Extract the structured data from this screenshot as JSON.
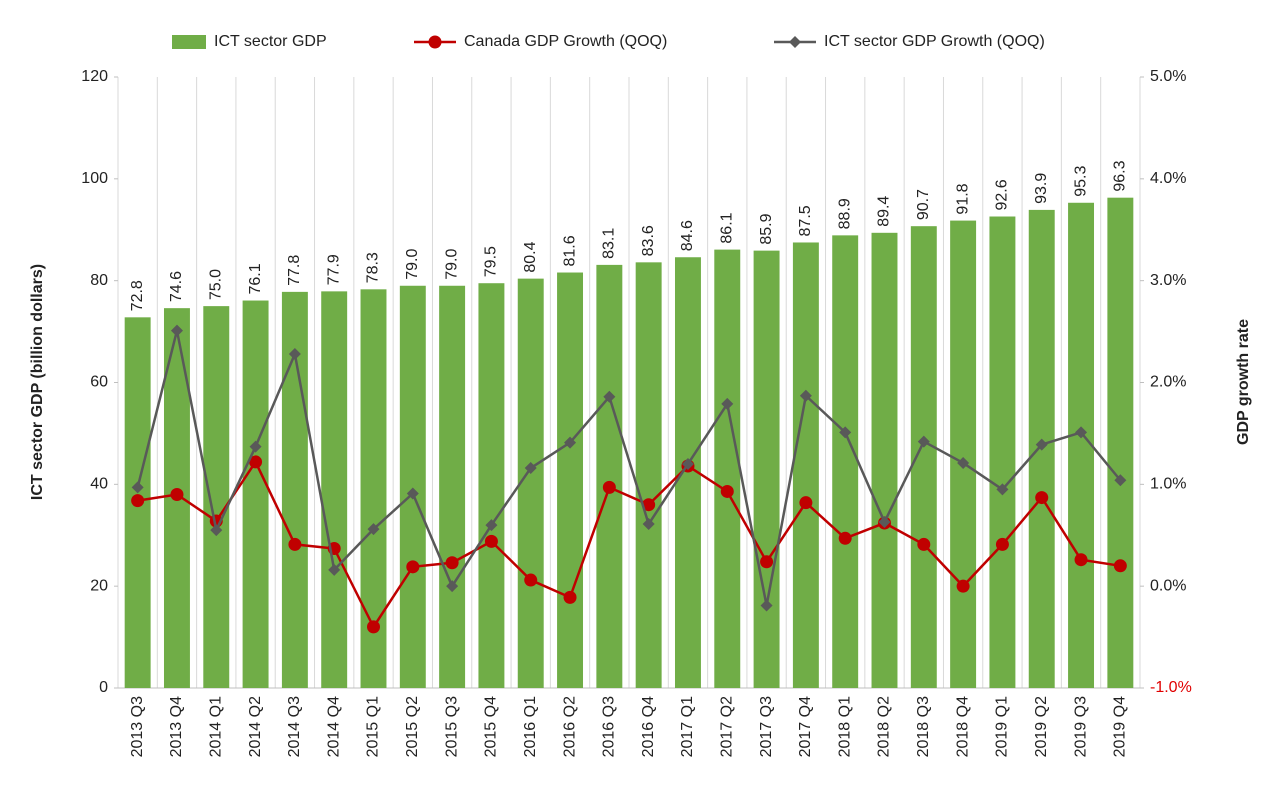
{
  "chart_data": {
    "type": "bar",
    "ylabel": "ICT sector GDP (billion dollars)",
    "y2label": "GDP growth rate",
    "categories": [
      "2013 Q3",
      "2013 Q4",
      "2014 Q1",
      "2014 Q2",
      "2014 Q3",
      "2014 Q4",
      "2015 Q1",
      "2015 Q2",
      "2015 Q3",
      "2015 Q4",
      "2016 Q1",
      "2016 Q2",
      "2016 Q3",
      "2016 Q4",
      "2017 Q1",
      "2017 Q2",
      "2017 Q3",
      "2017 Q4",
      "2018 Q1",
      "2018 Q2",
      "2018 Q3",
      "2018 Q4",
      "2019 Q1",
      "2019 Q2",
      "2019 Q3",
      "2019 Q4"
    ],
    "series": [
      {
        "name": "ICT sector GDP",
        "type": "bar",
        "color": "#70ad47",
        "values": [
          72.8,
          74.6,
          75.0,
          76.1,
          77.8,
          77.9,
          78.3,
          79.0,
          79.0,
          79.5,
          80.4,
          81.6,
          83.1,
          83.6,
          84.6,
          86.1,
          85.9,
          87.5,
          88.9,
          89.4,
          90.7,
          91.8,
          92.6,
          93.9,
          95.3,
          96.3
        ],
        "value_labels": [
          "72.8",
          "74.6",
          "75.0",
          "76.1",
          "77.8",
          "77.9",
          "78.3",
          "79.0",
          "79.0",
          "79.5",
          "80.4",
          "81.6",
          "83.1",
          "83.6",
          "84.6",
          "86.1",
          "85.9",
          "87.5",
          "88.9",
          "89.4",
          "90.7",
          "91.8",
          "92.6",
          "93.9",
          "95.3",
          "96.3"
        ]
      },
      {
        "name": "Canada GDP Growth (QOQ)",
        "type": "line",
        "axis": "y2",
        "marker": "circle",
        "color": "#c00000",
        "values": [
          0.84,
          0.9,
          0.64,
          1.22,
          0.41,
          0.37,
          -0.4,
          0.19,
          0.23,
          0.44,
          0.06,
          -0.11,
          0.97,
          0.8,
          1.18,
          0.93,
          0.24,
          0.82,
          0.47,
          0.62,
          0.41,
          0.0,
          0.41,
          0.87,
          0.26,
          0.2
        ]
      },
      {
        "name": "ICT sector GDP Growth (QOQ)",
        "type": "line",
        "axis": "y2",
        "marker": "diamond",
        "color": "#595959",
        "values": [
          0.97,
          2.51,
          0.55,
          1.37,
          2.28,
          0.16,
          0.56,
          0.91,
          0.0,
          0.6,
          1.16,
          1.41,
          1.86,
          0.61,
          1.2,
          1.79,
          -0.19,
          1.87,
          1.51,
          0.63,
          1.42,
          1.21,
          0.95,
          1.39,
          1.51,
          1.04
        ]
      }
    ],
    "ylim": [
      0,
      120
    ],
    "yticks": [
      0,
      20,
      40,
      60,
      80,
      100,
      120
    ],
    "y2lim": [
      -1,
      5
    ],
    "y2ticks": [
      {
        "value": -1,
        "label": "-1.0%"
      },
      {
        "value": 0,
        "label": "0.0%"
      },
      {
        "value": 1,
        "label": "1.0%"
      },
      {
        "value": 2,
        "label": "2.0%"
      },
      {
        "value": 3,
        "label": "3.0%"
      },
      {
        "value": 4,
        "label": "4.0%"
      },
      {
        "value": 5,
        "label": "5.0%"
      }
    ],
    "y2_negative_tick_color": "#e00000",
    "legend": "top",
    "category_grid": true
  }
}
